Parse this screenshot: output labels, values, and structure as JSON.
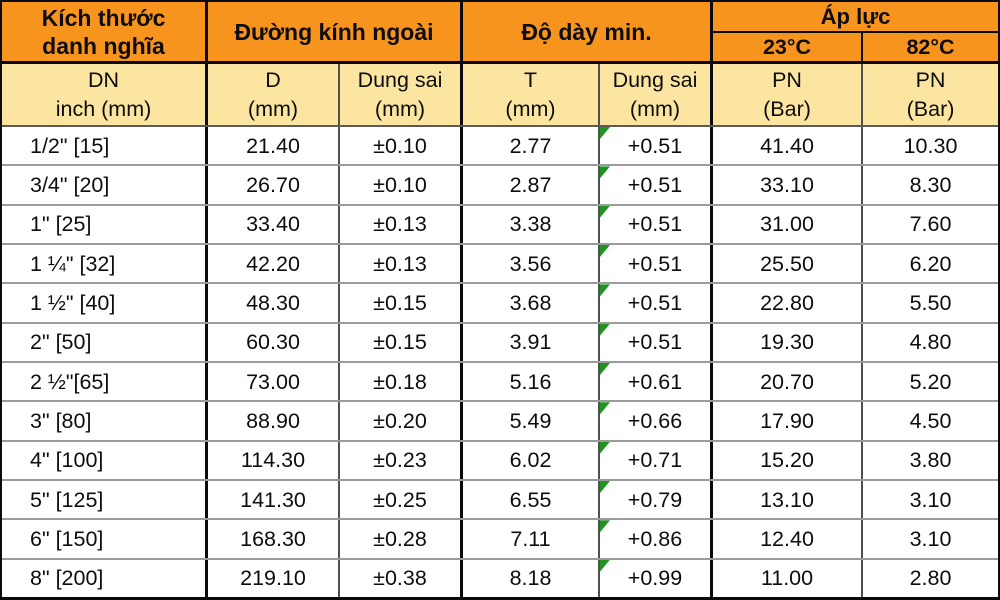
{
  "colors": {
    "header_orange": "#F7941E",
    "subheader_cream": "#FBE5A0",
    "group_border_black": "#0a0a0a",
    "inner_border_gray": "#4f4f4f",
    "row_line_gray": "#9b9b9b",
    "flag_green": "#1F941F"
  },
  "header": {
    "group_size_line1": "Kích thước",
    "group_size_line2": "danh nghĩa",
    "group_od": "Đường kính ngoài",
    "group_thickness": "Độ dày min.",
    "group_pressure": "Áp lực",
    "temp_23": "23°C",
    "temp_82": "82°C",
    "sub": [
      {
        "l1": "DN",
        "l2": "inch (mm)"
      },
      {
        "l1": "D",
        "l2": "(mm)"
      },
      {
        "l1": "Dung sai",
        "l2": "(mm)"
      },
      {
        "l1": "T",
        "l2": "(mm)"
      },
      {
        "l1": "Dung sai",
        "l2": "(mm)"
      },
      {
        "l1": "PN",
        "l2": "(Bar)"
      },
      {
        "l1": "PN",
        "l2": "(Bar)"
      }
    ]
  },
  "rows": [
    {
      "dn": "1/2\" [15]",
      "d": "21.40",
      "d_tol": "±0.10",
      "t": "2.77",
      "t_tol": "+0.51",
      "pn23": "41.40",
      "pn82": "10.30"
    },
    {
      "dn": "3/4\" [20]",
      "d": "26.70",
      "d_tol": "±0.10",
      "t": "2.87",
      "t_tol": "+0.51",
      "pn23": "33.10",
      "pn82": "8.30"
    },
    {
      "dn": "1\" [25]",
      "d": "33.40",
      "d_tol": "±0.13",
      "t": "3.38",
      "t_tol": "+0.51",
      "pn23": "31.00",
      "pn82": "7.60"
    },
    {
      "dn": "1 ¼\" [32]",
      "d": "42.20",
      "d_tol": "±0.13",
      "t": "3.56",
      "t_tol": "+0.51",
      "pn23": "25.50",
      "pn82": "6.20"
    },
    {
      "dn": "1 ½\" [40]",
      "d": "48.30",
      "d_tol": "±0.15",
      "t": "3.68",
      "t_tol": "+0.51",
      "pn23": "22.80",
      "pn82": "5.50"
    },
    {
      "dn": "2\" [50]",
      "d": "60.30",
      "d_tol": "±0.15",
      "t": "3.91",
      "t_tol": "+0.51",
      "pn23": "19.30",
      "pn82": "4.80"
    },
    {
      "dn": "2 ½\"[65]",
      "d": "73.00",
      "d_tol": "±0.18",
      "t": "5.16",
      "t_tol": "+0.61",
      "pn23": "20.70",
      "pn82": "5.20"
    },
    {
      "dn": "3\" [80]",
      "d": "88.90",
      "d_tol": "±0.20",
      "t": "5.49",
      "t_tol": "+0.66",
      "pn23": "17.90",
      "pn82": "4.50"
    },
    {
      "dn": "4\" [100]",
      "d": "114.30",
      "d_tol": "±0.23",
      "t": "6.02",
      "t_tol": "+0.71",
      "pn23": "15.20",
      "pn82": "3.80"
    },
    {
      "dn": "5\" [125]",
      "d": "141.30",
      "d_tol": "±0.25",
      "t": "6.55",
      "t_tol": "+0.79",
      "pn23": "13.10",
      "pn82": "3.10"
    },
    {
      "dn": "6\" [150]",
      "d": "168.30",
      "d_tol": "±0.28",
      "t": "7.11",
      "t_tol": "+0.86",
      "pn23": "12.40",
      "pn82": "3.10"
    },
    {
      "dn": "8\" [200]",
      "d": "219.10",
      "d_tol": "±0.38",
      "t": "8.18",
      "t_tol": "+0.99",
      "pn23": "11.00",
      "pn82": "2.80"
    }
  ],
  "chart_data": {
    "type": "table",
    "title": "Kích thước danh nghĩa / Đường kính ngoài / Độ dày min. / Áp lực",
    "columns": [
      "DN inch (mm)",
      "D (mm)",
      "Dung sai (mm)",
      "T (mm)",
      "Dung sai (mm)",
      "PN (Bar) 23°C",
      "PN (Bar) 82°C"
    ],
    "rows": [
      [
        "1/2\" [15]",
        21.4,
        "±0.10",
        2.77,
        "+0.51",
        41.4,
        10.3
      ],
      [
        "3/4\" [20]",
        26.7,
        "±0.10",
        2.87,
        "+0.51",
        33.1,
        8.3
      ],
      [
        "1\" [25]",
        33.4,
        "±0.13",
        3.38,
        "+0.51",
        31.0,
        7.6
      ],
      [
        "1 ¼\" [32]",
        42.2,
        "±0.13",
        3.56,
        "+0.51",
        25.5,
        6.2
      ],
      [
        "1 ½\" [40]",
        48.3,
        "±0.15",
        3.68,
        "+0.51",
        22.8,
        5.5
      ],
      [
        "2\" [50]",
        60.3,
        "±0.15",
        3.91,
        "+0.51",
        19.3,
        4.8
      ],
      [
        "2 ½\"[65]",
        73.0,
        "±0.18",
        5.16,
        "+0.61",
        20.7,
        5.2
      ],
      [
        "3\" [80]",
        88.9,
        "±0.20",
        5.49,
        "+0.66",
        17.9,
        4.5
      ],
      [
        "4\" [100]",
        114.3,
        "±0.23",
        6.02,
        "+0.71",
        15.2,
        3.8
      ],
      [
        "5\" [125]",
        141.3,
        "±0.25",
        6.55,
        "+0.79",
        13.1,
        3.1
      ],
      [
        "6\" [150]",
        168.3,
        "±0.28",
        7.11,
        "+0.86",
        12.4,
        3.1
      ],
      [
        "8\" [200]",
        219.1,
        "±0.38",
        8.18,
        "+0.99",
        11.0,
        2.8
      ]
    ]
  }
}
